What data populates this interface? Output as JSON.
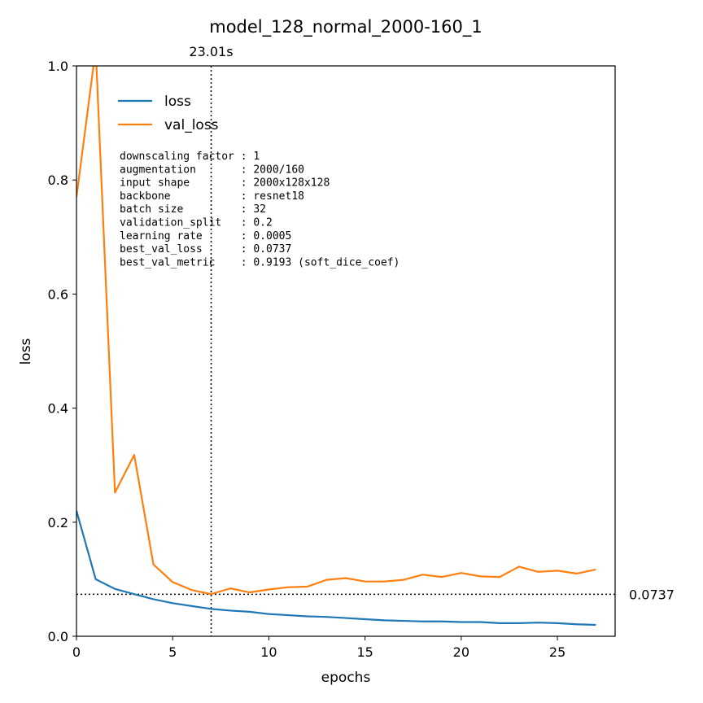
{
  "chart_data": {
    "type": "line",
    "title": "model_128_normal_2000-160_1",
    "xlabel": "epochs",
    "ylabel": "loss",
    "xlim": [
      0,
      28
    ],
    "ylim": [
      0,
      1.0
    ],
    "xticks": [
      0,
      5,
      10,
      15,
      20,
      25
    ],
    "yticks": [
      0.0,
      0.2,
      0.4,
      0.6,
      0.8,
      1.0
    ],
    "grid": false,
    "legend_position": "top-left",
    "x": [
      0,
      1,
      2,
      3,
      4,
      5,
      6,
      7,
      8,
      9,
      10,
      11,
      12,
      13,
      14,
      15,
      16,
      17,
      18,
      19,
      20,
      21,
      22,
      23,
      24,
      25,
      26,
      27
    ],
    "series": [
      {
        "name": "loss",
        "color": "#1f77b4",
        "values": [
          0.22,
          0.1,
          0.083,
          0.074,
          0.065,
          0.058,
          0.053,
          0.048,
          0.045,
          0.043,
          0.039,
          0.037,
          0.035,
          0.034,
          0.032,
          0.03,
          0.028,
          0.027,
          0.026,
          0.026,
          0.025,
          0.025,
          0.023,
          0.023,
          0.024,
          0.023,
          0.021,
          0.02
        ]
      },
      {
        "name": "val_loss",
        "color": "#ff7f0e",
        "values": [
          0.77,
          1.03,
          0.252,
          0.318,
          0.126,
          0.095,
          0.081,
          0.074,
          0.084,
          0.077,
          0.082,
          0.086,
          0.087,
          0.099,
          0.102,
          0.096,
          0.096,
          0.099,
          0.108,
          0.104,
          0.111,
          0.105,
          0.104,
          0.122,
          0.113,
          0.115,
          0.11,
          0.117
        ]
      }
    ],
    "vline": {
      "x": 7.0,
      "label": "23.01s"
    },
    "hline": {
      "y": 0.0737,
      "label": "0.0737"
    },
    "info_lines": [
      "downscaling factor : 1",
      "augmentation       : 2000/160",
      "input shape        : 2000x128x128",
      "backbone           : resnet18",
      "batch size         : 32",
      "validation_split   : 0.2",
      "learning rate      : 0.0005",
      "best_val_loss      : 0.0737",
      "best_val_metric    : 0.9193 (soft_dice_coef)"
    ]
  }
}
